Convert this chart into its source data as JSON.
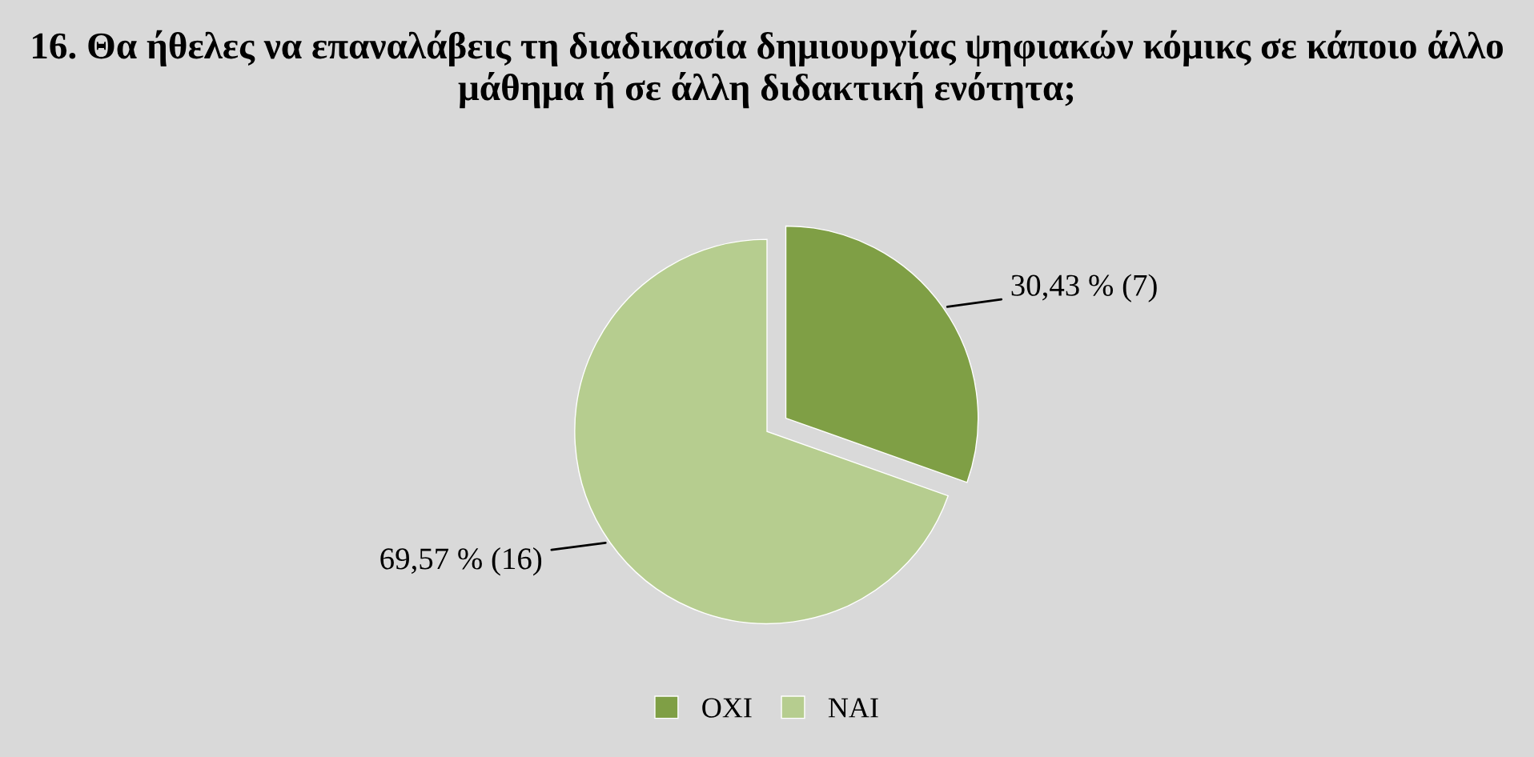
{
  "chart_data": {
    "type": "pie",
    "title": "16. Θα ήθελες να επαναλάβεις τη διαδικασία δημιουργίας ψηφιακών κόμικς σε κάποιο άλλο μάθημα ή σε άλλη διδακτική ενότητα;",
    "categories": [
      "ΟΧΙ",
      "ΝΑΙ"
    ],
    "values": [
      30.43,
      69.57
    ],
    "value_labels": [
      "30,43 % (7)",
      "69,57 % (16)"
    ],
    "colors": [
      "#7f9f45",
      "#b6cd8f"
    ],
    "legend": "bottom"
  }
}
